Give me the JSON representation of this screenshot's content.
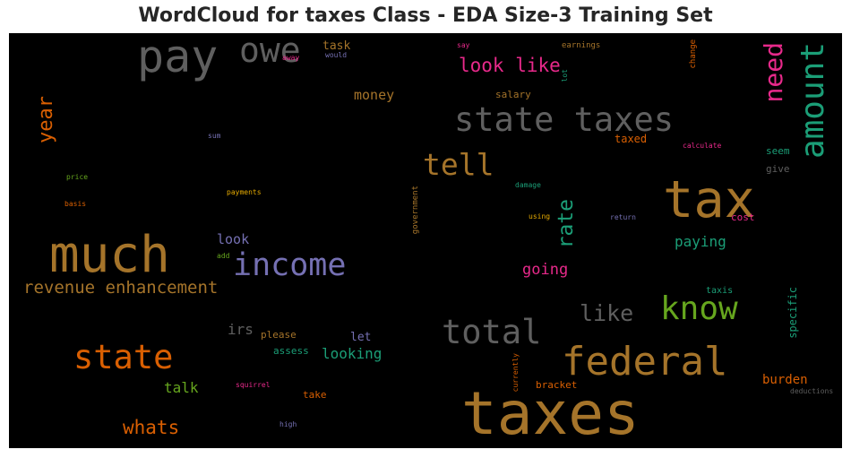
{
  "chart_data": {
    "type": "wordcloud",
    "title": "WordCloud for taxes Class - EDA Size-3 Training Set",
    "background": "#000000",
    "words": [
      {
        "text": "taxes",
        "color": "#a5742a",
        "weight": 1.0
      },
      {
        "text": "tax",
        "color": "#a5742a",
        "weight": 0.88
      },
      {
        "text": "much",
        "color": "#a5742a",
        "weight": 0.84
      },
      {
        "text": "pay",
        "color": "#5f5f5f",
        "weight": 0.72
      },
      {
        "text": "state taxes",
        "color": "#5f5f5f",
        "weight": 0.58
      },
      {
        "text": "federal",
        "color": "#a5742a",
        "weight": 0.7
      },
      {
        "text": "amount",
        "color": "#1b9e77",
        "weight": 0.62
      },
      {
        "text": "owe",
        "color": "#5f5f5f",
        "weight": 0.58
      },
      {
        "text": "income",
        "color": "#7570b3",
        "weight": 0.56
      },
      {
        "text": "total",
        "color": "#5f5f5f",
        "weight": 0.58
      },
      {
        "text": "state",
        "color": "#d95f02",
        "weight": 0.58
      },
      {
        "text": "know",
        "color": "#66a61e",
        "weight": 0.55
      },
      {
        "text": "tell",
        "color": "#a5742a",
        "weight": 0.5
      },
      {
        "text": "need",
        "color": "#e7298a",
        "weight": 0.48
      },
      {
        "text": "rate",
        "color": "#1b9e77",
        "weight": 0.4
      },
      {
        "text": "like",
        "color": "#5f5f5f",
        "weight": 0.38
      },
      {
        "text": "year",
        "color": "#d95f02",
        "weight": 0.36
      },
      {
        "text": "look like",
        "color": "#e7298a",
        "weight": 0.33
      },
      {
        "text": "revenue enhancement",
        "color": "#a5742a",
        "weight": 0.3
      },
      {
        "text": "whats",
        "color": "#d95f02",
        "weight": 0.32
      },
      {
        "text": "going",
        "color": "#e7298a",
        "weight": 0.28
      },
      {
        "text": "paying",
        "color": "#1b9e77",
        "weight": 0.26
      },
      {
        "text": "looking",
        "color": "#1b9e77",
        "weight": 0.27
      },
      {
        "text": "money",
        "color": "#a5742a",
        "weight": 0.27
      },
      {
        "text": "irs",
        "color": "#5f5f5f",
        "weight": 0.27
      },
      {
        "text": "look",
        "color": "#7570b3",
        "weight": 0.25
      },
      {
        "text": "talk",
        "color": "#66a61e",
        "weight": 0.25
      },
      {
        "text": "burden",
        "color": "#d95f02",
        "weight": 0.22
      },
      {
        "text": "specific",
        "color": "#1b9e77",
        "weight": 0.2
      },
      {
        "text": "task",
        "color": "#a5742a",
        "weight": 0.21
      },
      {
        "text": "let",
        "color": "#7570b3",
        "weight": 0.2
      },
      {
        "text": "taxed",
        "color": "#d95f02",
        "weight": 0.19
      },
      {
        "text": "government",
        "color": "#a5742a",
        "weight": 0.16
      },
      {
        "text": "please",
        "color": "#a5742a",
        "weight": 0.16
      },
      {
        "text": "assess",
        "color": "#1b9e77",
        "weight": 0.16
      },
      {
        "text": "salary",
        "color": "#a5742a",
        "weight": 0.16
      },
      {
        "text": "seem",
        "color": "#1b9e77",
        "weight": 0.16
      },
      {
        "text": "give",
        "color": "#5f5f5f",
        "weight": 0.16
      },
      {
        "text": "take",
        "color": "#d95f02",
        "weight": 0.16
      },
      {
        "text": "bracket",
        "color": "#d95f02",
        "weight": 0.16
      },
      {
        "text": "cost",
        "color": "#e7298a",
        "weight": 0.16
      },
      {
        "text": "taxis",
        "color": "#1b9e77",
        "weight": 0.15
      },
      {
        "text": "change",
        "color": "#d95f02",
        "weight": 0.13
      },
      {
        "text": "currently",
        "color": "#d95f02",
        "weight": 0.13
      },
      {
        "text": "earnings",
        "color": "#a5742a",
        "weight": 0.12
      },
      {
        "text": "say",
        "color": "#e7298a",
        "weight": 0.12
      },
      {
        "text": "would",
        "color": "#7570b3",
        "weight": 0.12
      },
      {
        "text": "away",
        "color": "#e7298a",
        "weight": 0.11
      },
      {
        "text": "lot",
        "color": "#1b9e77",
        "weight": 0.11
      },
      {
        "text": "sum",
        "color": "#7570b3",
        "weight": 0.11
      },
      {
        "text": "calculate",
        "color": "#e7298a",
        "weight": 0.12
      },
      {
        "text": "price",
        "color": "#66a61e",
        "weight": 0.11
      },
      {
        "text": "basis",
        "color": "#d95f02",
        "weight": 0.11
      },
      {
        "text": "payments",
        "color": "#e6ab02",
        "weight": 0.11
      },
      {
        "text": "damage",
        "color": "#1b9e77",
        "weight": 0.11
      },
      {
        "text": "using",
        "color": "#e6ab02",
        "weight": 0.11
      },
      {
        "text": "return",
        "color": "#7570b3",
        "weight": 0.11
      },
      {
        "text": "add",
        "color": "#66a61e",
        "weight": 0.1
      },
      {
        "text": "squirrel",
        "color": "#e7298a",
        "weight": 0.11
      },
      {
        "text": "high",
        "color": "#7570b3",
        "weight": 0.11
      },
      {
        "text": "deductions",
        "color": "#5f5f5f",
        "weight": 0.11
      }
    ]
  }
}
